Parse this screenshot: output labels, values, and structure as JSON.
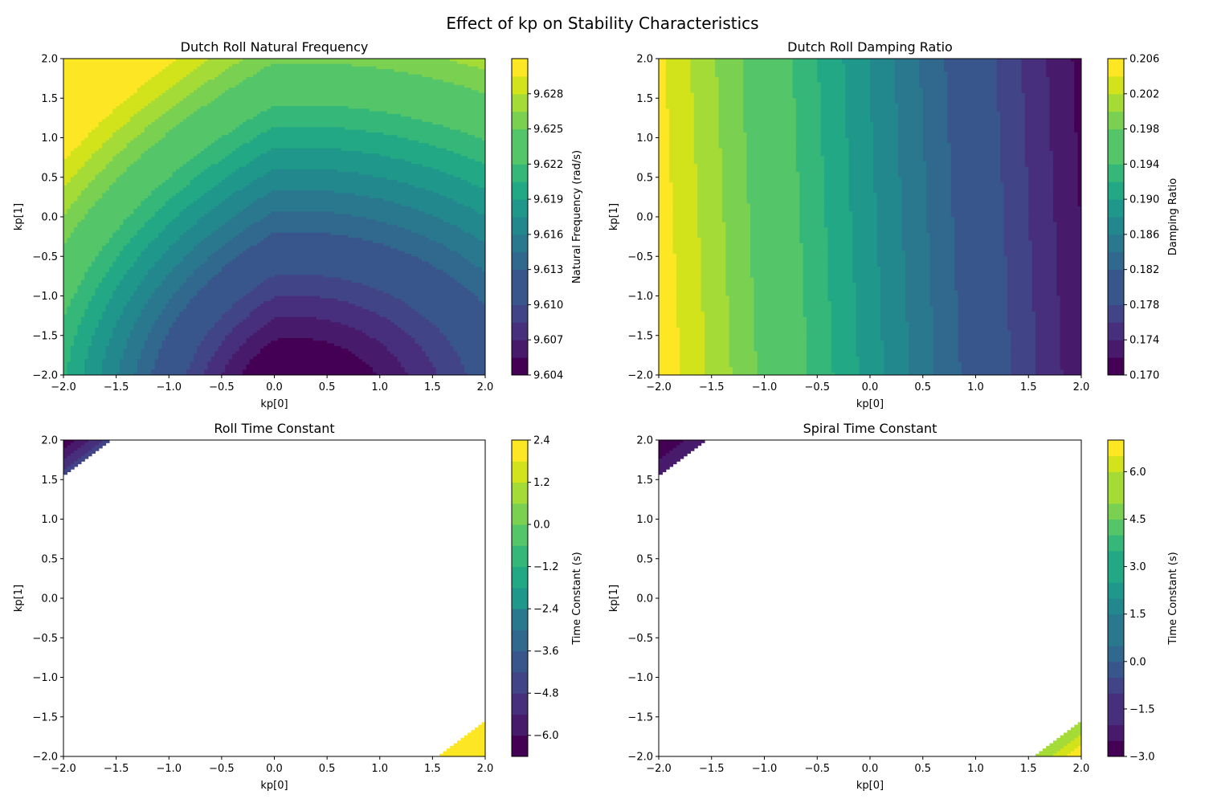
{
  "figure": {
    "suptitle": "Effect of kp on Stability Characteristics"
  },
  "colormap": [
    "#440154",
    "#481a6c",
    "#472f7d",
    "#414487",
    "#39568c",
    "#31688e",
    "#2a788e",
    "#23888e",
    "#1f988b",
    "#22a884",
    "#35b779",
    "#54c568",
    "#7ad151",
    "#a5db36",
    "#d2e21b",
    "#fde725"
  ],
  "chart_data": [
    {
      "type": "contour",
      "title": "Dutch Roll Natural Frequency",
      "xlabel": "kp[0]",
      "ylabel": "kp[1]",
      "xlim": [
        -2.0,
        2.0
      ],
      "ylim": [
        -2.0,
        2.0
      ],
      "xticks": [
        "−2.0",
        "−1.5",
        "−1.0",
        "−0.5",
        "0.0",
        "0.5",
        "1.0",
        "1.5",
        "2.0"
      ],
      "yticks": [
        "−2.0",
        "−1.5",
        "−1.0",
        "−0.5",
        "0.0",
        "0.5",
        "1.0",
        "1.5",
        "2.0"
      ],
      "field": {
        "kind": "freq",
        "min": 9.604,
        "max": 9.63,
        "center": [
          0.2,
          -2.4
        ],
        "grad": [
          -0.0078,
          0.0052
        ]
      },
      "levels": [
        9.604,
        9.6055,
        9.607,
        9.6085,
        9.61,
        9.6115,
        9.613,
        9.6145,
        9.616,
        9.6175,
        9.619,
        9.6205,
        9.622,
        9.6235,
        9.625,
        9.6265,
        9.628,
        9.6295,
        9.631
      ],
      "colorbar": {
        "label": "Natural Frequency (rad/s)",
        "min": 9.604,
        "max": 9.631,
        "ticks": [
          9.604,
          9.607,
          9.61,
          9.613,
          9.616,
          9.619,
          9.622,
          9.625,
          9.628
        ],
        "tick_labels": [
          "9.604",
          "9.607",
          "9.610",
          "9.613",
          "9.616",
          "9.619",
          "9.622",
          "9.625",
          "9.628"
        ]
      }
    },
    {
      "type": "contour",
      "title": "Dutch Roll Damping Ratio",
      "xlabel": "kp[0]",
      "ylabel": "kp[1]",
      "xlim": [
        -2.0,
        2.0
      ],
      "ylim": [
        -2.0,
        2.0
      ],
      "xticks": [
        "−2.0",
        "−1.5",
        "−1.0",
        "−0.5",
        "0.0",
        "0.5",
        "1.0",
        "1.5",
        "2.0"
      ],
      "yticks": [
        "−2.0",
        "−1.5",
        "−1.0",
        "−0.5",
        "0.0",
        "0.5",
        "1.0",
        "1.5",
        "2.0"
      ],
      "field": {
        "kind": "linear",
        "intercept": 0.1885,
        "slope_x": -0.0083,
        "slope_y": -0.0003
      },
      "levels": [
        0.17,
        0.172,
        0.174,
        0.176,
        0.178,
        0.18,
        0.182,
        0.184,
        0.186,
        0.188,
        0.19,
        0.192,
        0.194,
        0.196,
        0.198,
        0.2,
        0.202,
        0.204,
        0.206
      ],
      "colorbar": {
        "label": "Damping Ratio",
        "min": 0.17,
        "max": 0.206,
        "ticks": [
          0.17,
          0.174,
          0.178,
          0.182,
          0.186,
          0.19,
          0.194,
          0.198,
          0.202,
          0.206
        ],
        "tick_labels": [
          "0.170",
          "0.174",
          "0.178",
          "0.182",
          "0.186",
          "0.190",
          "0.194",
          "0.198",
          "0.202",
          "0.206"
        ]
      }
    },
    {
      "type": "contour",
      "title": "Roll Time Constant",
      "xlabel": "kp[0]",
      "ylabel": "kp[1]",
      "xlim": [
        -2.0,
        2.0
      ],
      "ylim": [
        -2.0,
        2.0
      ],
      "xticks": [
        "−2.0",
        "−1.5",
        "−1.0",
        "−0.5",
        "0.0",
        "0.5",
        "1.0",
        "1.5",
        "2.0"
      ],
      "yticks": [
        "−2.0",
        "−1.5",
        "−1.0",
        "−0.5",
        "0.0",
        "0.5",
        "1.0",
        "1.5",
        "2.0"
      ],
      "field": {
        "kind": "corners",
        "threshold": 3.55,
        "tl": {
          "from": -4.5,
          "to": -6.6
        },
        "br": {
          "from": 1.8,
          "to": 2.4
        }
      },
      "levels": [
        -6.6,
        -6.0,
        -5.4,
        -4.8,
        -4.2,
        -3.6,
        -3.0,
        -2.4,
        -1.8,
        -1.2,
        -0.6,
        0.0,
        0.6,
        1.2,
        1.8,
        2.4
      ],
      "colorbar": {
        "label": "Time Constant (s)",
        "min": -6.6,
        "max": 2.4,
        "ticks": [
          -6.0,
          -4.8,
          -3.6,
          -2.4,
          -1.2,
          0.0,
          1.2,
          2.4
        ],
        "tick_labels": [
          "−6.0",
          "−4.8",
          "−3.6",
          "−2.4",
          "−1.2",
          "0.0",
          "1.2",
          "2.4"
        ]
      }
    },
    {
      "type": "contour",
      "title": "Spiral Time Constant",
      "xlabel": "kp[0]",
      "ylabel": "kp[1]",
      "xlim": [
        -2.0,
        2.0
      ],
      "ylim": [
        -2.0,
        2.0
      ],
      "xticks": [
        "−2.0",
        "−1.5",
        "−1.0",
        "−0.5",
        "0.0",
        "0.5",
        "1.0",
        "1.5",
        "2.0"
      ],
      "yticks": [
        "−2.0",
        "−1.5",
        "−1.0",
        "−0.5",
        "0.0",
        "0.5",
        "1.0",
        "1.5",
        "2.0"
      ],
      "field": {
        "kind": "corners",
        "threshold": 3.55,
        "tl": {
          "from": -2.1,
          "to": -3.0
        },
        "br": {
          "from": 5.4,
          "to": 7.0
        }
      },
      "levels": [
        -3.0,
        -2.5,
        -2.0,
        -1.5,
        -1.0,
        -0.5,
        0.0,
        0.5,
        1.0,
        1.5,
        2.0,
        2.5,
        3.0,
        3.5,
        4.0,
        4.5,
        5.0,
        5.5,
        6.0,
        6.5,
        7.0
      ],
      "colorbar": {
        "label": "Time Constant (s)",
        "min": -3.0,
        "max": 7.0,
        "ticks": [
          -3.0,
          -1.5,
          0.0,
          1.5,
          3.0,
          4.5,
          6.0
        ],
        "tick_labels": [
          "−3.0",
          "−1.5",
          "0.0",
          "1.5",
          "3.0",
          "4.5",
          "6.0"
        ]
      }
    }
  ]
}
